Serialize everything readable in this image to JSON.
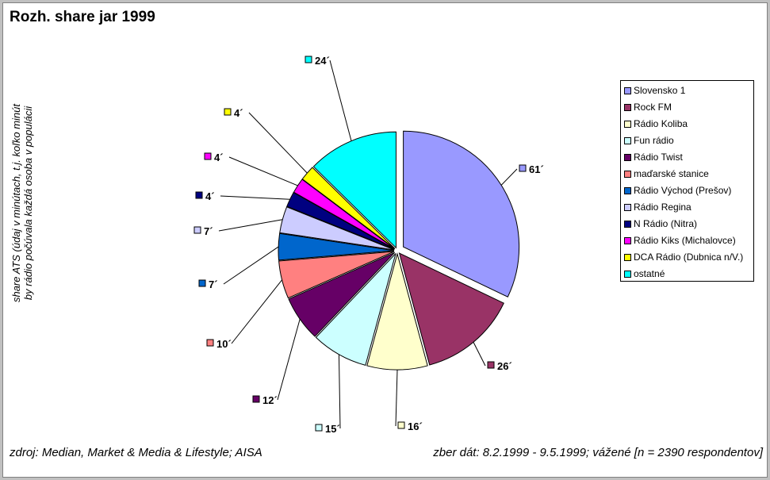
{
  "title": "Rozh. share jar 1999",
  "ylabel_line1": "share ATS (údaj v minútach, t.j. koľko minút",
  "ylabel_line2": "by rádio počúvala každá osoba v populácii",
  "footer_left": "zdroj: Median, Market & Media & Lifestyle; AISA",
  "footer_right": "zber dát: 8.2.1999 - 9.5.1999; vážené [n = 2390 respondentov]",
  "chart_data": {
    "type": "pie",
    "title": "Rozh. share jar 1999",
    "legend_position": "right",
    "slices": [
      {
        "name": "Slovensko 1",
        "value": 61,
        "label": "61´",
        "color": "#9999ff"
      },
      {
        "name": "Rock FM",
        "value": 26,
        "label": "26´",
        "color": "#993366"
      },
      {
        "name": "Rádio Koliba",
        "value": 16,
        "label": "16´",
        "color": "#ffffcc"
      },
      {
        "name": "Fun rádio",
        "value": 15,
        "label": "15´",
        "color": "#ccffff"
      },
      {
        "name": "Rádio Twist",
        "value": 12,
        "label": "12´",
        "color": "#660066"
      },
      {
        "name": "maďarské stanice",
        "value": 10,
        "label": "10´",
        "color": "#ff8080"
      },
      {
        "name": "Rádio Východ (Prešov)",
        "value": 7,
        "label": "7´",
        "color": "#0066cc"
      },
      {
        "name": "Rádio Regina",
        "value": 7,
        "label": "7´",
        "color": "#ccccff"
      },
      {
        "name": "N Rádio (Nitra)",
        "value": 4,
        "label": "4´",
        "color": "#000080"
      },
      {
        "name": "Rádio Kiks (Michalovce)",
        "value": 4,
        "label": "4´",
        "color": "#ff00ff"
      },
      {
        "name": "DCA Rádio (Dubnica n/V.)",
        "value": 4,
        "label": "4´",
        "color": "#ffff00"
      },
      {
        "name": "ostatné",
        "value": 24,
        "label": "24´",
        "color": "#00ffff"
      }
    ]
  }
}
